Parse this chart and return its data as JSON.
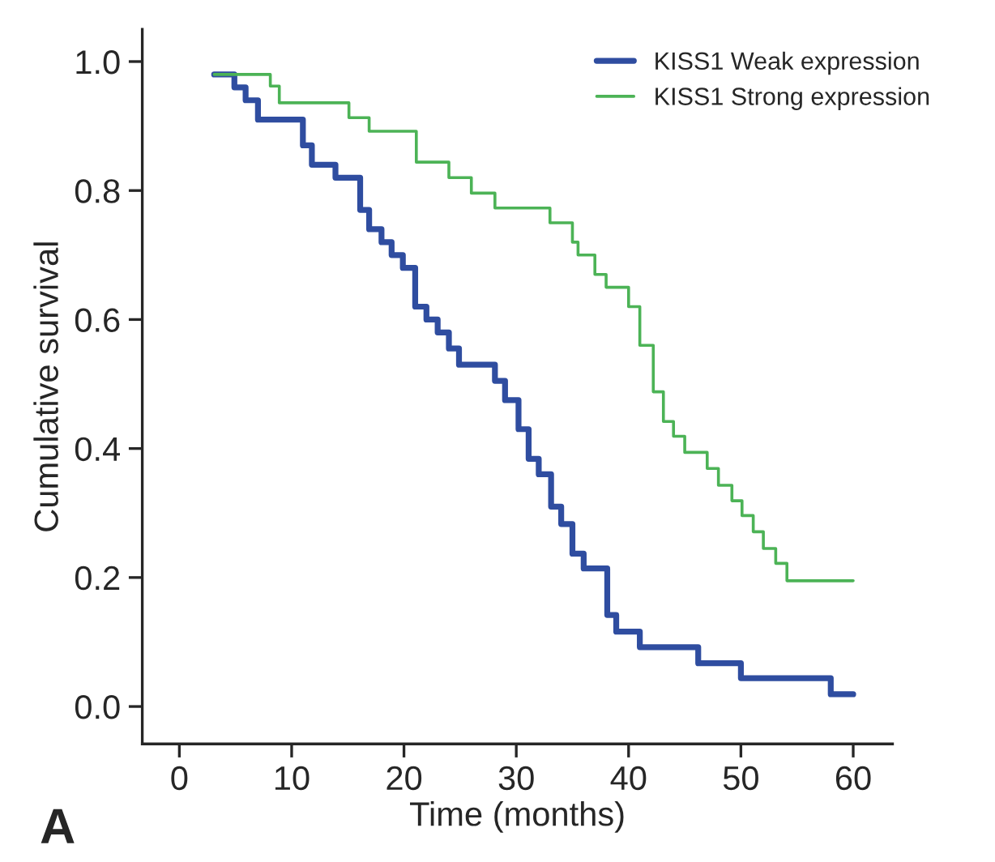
{
  "chart_data": {
    "type": "step",
    "xlabel": "Time (months)",
    "ylabel": "Cumulative survival",
    "annotations": [
      "A"
    ],
    "series": [
      {
        "name": "KISS1 Weak expression",
        "color": "#2f4da0",
        "x": [
          3.1,
          4.9,
          5.9,
          7.0,
          11.0,
          11.8,
          13.9,
          16.1,
          16.9,
          18.0,
          18.9,
          19.9,
          21.0,
          22.0,
          23.0,
          24.0,
          24.9,
          28.1,
          29.0,
          30.2,
          31.1,
          32.0,
          33.1,
          34.0,
          35.0,
          36.0,
          38.1,
          38.9,
          41.0,
          46.2,
          50.0,
          58.0,
          60.0
        ],
        "values": [
          0.98,
          0.96,
          0.94,
          0.91,
          0.87,
          0.84,
          0.82,
          0.77,
          0.74,
          0.72,
          0.7,
          0.68,
          0.62,
          0.6,
          0.58,
          0.555,
          0.53,
          0.505,
          0.475,
          0.43,
          0.384,
          0.36,
          0.31,
          0.283,
          0.237,
          0.214,
          0.142,
          0.116,
          0.092,
          0.067,
          0.044,
          0.019,
          0.019
        ]
      },
      {
        "name": "KISS1 Strong expression",
        "color": "#4cb356",
        "x": [
          3.1,
          8.1,
          8.9,
          15.1,
          16.9,
          21.1,
          24.0,
          26.0,
          28.1,
          33.0,
          35.0,
          35.5,
          37.0,
          38.0,
          40.0,
          41.0,
          42.2,
          43.1,
          44.0,
          45.0,
          47.0,
          48.0,
          49.2,
          50.1,
          51.1,
          52.0,
          53.1,
          54.1,
          60.0
        ],
        "values": [
          0.98,
          0.962,
          0.936,
          0.913,
          0.892,
          0.844,
          0.82,
          0.796,
          0.773,
          0.75,
          0.72,
          0.7,
          0.67,
          0.65,
          0.62,
          0.56,
          0.488,
          0.442,
          0.419,
          0.394,
          0.369,
          0.343,
          0.319,
          0.296,
          0.271,
          0.245,
          0.222,
          0.195,
          0.195
        ]
      }
    ],
    "xlim": [
      -3.3,
      63.5
    ],
    "ylim": [
      -0.058,
      1.05
    ],
    "xticks": [
      0,
      10,
      20,
      30,
      40,
      50,
      60
    ],
    "yticks": [
      {
        "value": 0.0,
        "label": "0.0"
      },
      {
        "value": 0.2,
        "label": "0.2"
      },
      {
        "value": 0.4,
        "label": "0.4"
      },
      {
        "value": 0.6,
        "label": "0.6"
      },
      {
        "value": 0.8,
        "label": "0.8"
      },
      {
        "value": 1.0,
        "label": "1.0"
      }
    ],
    "grid": false,
    "legend": "top right"
  }
}
